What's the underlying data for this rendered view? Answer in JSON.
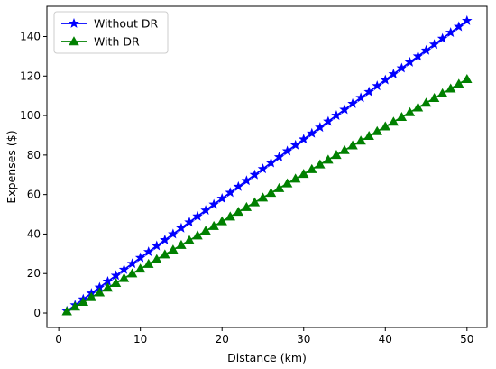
{
  "chart_data": {
    "type": "line",
    "title": "",
    "xlabel": "Distance (km)",
    "ylabel": "Expenses ($)",
    "xlim": [
      -1.45,
      52.45
    ],
    "ylim": [
      -7.3,
      155.3
    ],
    "xticks": [
      0,
      10,
      20,
      30,
      40,
      50
    ],
    "yticks": [
      0,
      20,
      40,
      60,
      80,
      100,
      120,
      140
    ],
    "x": [
      1,
      2,
      3,
      4,
      5,
      6,
      7,
      8,
      9,
      10,
      11,
      12,
      13,
      14,
      15,
      16,
      17,
      18,
      19,
      20,
      21,
      22,
      23,
      24,
      25,
      26,
      27,
      28,
      29,
      30,
      31,
      32,
      33,
      34,
      35,
      36,
      37,
      38,
      39,
      40,
      41,
      42,
      43,
      44,
      45,
      46,
      47,
      48,
      49,
      50
    ],
    "series": [
      {
        "name": "Without DR",
        "color": "#0000ff",
        "marker": "star",
        "values": [
          1.0,
          4.0,
          7.0,
          10.0,
          13.0,
          16.0,
          19.0,
          22.0,
          25.0,
          28.0,
          31.0,
          34.0,
          37.0,
          40.0,
          43.0,
          46.0,
          49.0,
          52.0,
          55.0,
          58.0,
          61.0,
          64.0,
          67.0,
          70.0,
          73.0,
          76.0,
          79.0,
          82.0,
          85.0,
          88.0,
          91.0,
          94.0,
          97.0,
          100.0,
          103.0,
          106.0,
          109.0,
          112.0,
          115.0,
          118.0,
          121.0,
          124.0,
          127.0,
          130.0,
          133.0,
          136.0,
          139.0,
          142.0,
          145.0,
          148.0
        ]
      },
      {
        "name": "With DR",
        "color": "#008000",
        "marker": "triangle",
        "values": [
          0.8,
          3.2,
          5.6,
          8.0,
          10.4,
          12.8,
          15.2,
          17.6,
          20.0,
          22.4,
          24.8,
          27.2,
          29.6,
          32.0,
          34.4,
          36.8,
          39.2,
          41.6,
          44.0,
          46.4,
          48.8,
          51.2,
          53.6,
          56.0,
          58.4,
          60.8,
          63.2,
          65.6,
          68.0,
          70.4,
          72.8,
          75.2,
          77.6,
          80.0,
          82.4,
          84.8,
          87.2,
          89.6,
          92.0,
          94.4,
          96.8,
          99.2,
          101.6,
          104.0,
          106.4,
          108.8,
          111.2,
          113.6,
          116.0,
          118.4
        ]
      }
    ],
    "legend": "upper-left",
    "grid": false
  }
}
